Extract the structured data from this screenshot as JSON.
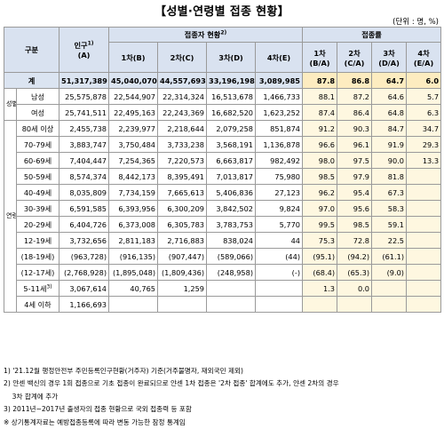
{
  "title": "【성별·연령별 접종 현황】",
  "unit": "(단위 : 명, %)",
  "headers": {
    "category": "구분",
    "population": "인구",
    "population_sup": "1)",
    "population_sub": "(A)",
    "vaccinated": "접종자 현황",
    "vaccinated_sup": "2)",
    "rate": "접종률",
    "dose1": "1차(B)",
    "dose2": "2차(C)",
    "dose3": "3차(D)",
    "dose4": "4차(E)",
    "r1a": "1차",
    "r1b": "(B/A)",
    "r2a": "2차",
    "r2b": "(C/A)",
    "r3a": "3차",
    "r3b": "(D/A)",
    "r4a": "4차",
    "r4b": "(E/A)"
  },
  "total": {
    "label": "계",
    "pop": "51,317,389",
    "d1": "45,040,070",
    "d2": "44,557,693",
    "d3": "33,196,198",
    "d4": "3,089,985",
    "r1": "87.8",
    "r2": "86.8",
    "r3": "64.7",
    "r4": "6.0"
  },
  "sex_group": "성별",
  "sex_rows": [
    {
      "label": "남성",
      "pop": "25,575,878",
      "d1": "22,544,907",
      "d2": "22,314,324",
      "d3": "16,513,678",
      "d4": "1,466,733",
      "r1": "88.1",
      "r2": "87.2",
      "r3": "64.6",
      "r4": "5.7"
    },
    {
      "label": "여성",
      "pop": "25,741,511",
      "d1": "22,495,163",
      "d2": "22,243,369",
      "d3": "16,682,520",
      "d4": "1,623,252",
      "r1": "87.4",
      "r2": "86.4",
      "r3": "64.8",
      "r4": "6.3"
    }
  ],
  "age_group": "연령별",
  "age_rows": [
    {
      "label": "80세 이상",
      "pop": "2,455,738",
      "d1": "2,239,977",
      "d2": "2,218,644",
      "d3": "2,079,258",
      "d4": "851,874",
      "r1": "91.2",
      "r2": "90.3",
      "r3": "84.7",
      "r4": "34.7"
    },
    {
      "label": "70-79세",
      "pop": "3,883,747",
      "d1": "3,750,484",
      "d2": "3,733,238",
      "d3": "3,568,191",
      "d4": "1,136,878",
      "r1": "96.6",
      "r2": "96.1",
      "r3": "91.9",
      "r4": "29.3"
    },
    {
      "label": "60-69세",
      "pop": "7,404,447",
      "d1": "7,254,365",
      "d2": "7,220,573",
      "d3": "6,663,817",
      "d4": "982,492",
      "r1": "98.0",
      "r2": "97.5",
      "r3": "90.0",
      "r4": "13.3"
    },
    {
      "label": "50-59세",
      "pop": "8,574,374",
      "d1": "8,442,173",
      "d2": "8,395,491",
      "d3": "7,013,817",
      "d4": "75,980",
      "r1": "98.5",
      "r2": "97.9",
      "r3": "81.8",
      "r4": ""
    },
    {
      "label": "40-49세",
      "pop": "8,035,809",
      "d1": "7,734,159",
      "d2": "7,665,613",
      "d3": "5,406,836",
      "d4": "27,123",
      "r1": "96.2",
      "r2": "95.4",
      "r3": "67.3",
      "r4": ""
    },
    {
      "label": "30-39세",
      "pop": "6,591,585",
      "d1": "6,393,956",
      "d2": "6,300,209",
      "d3": "3,842,502",
      "d4": "9,824",
      "r1": "97.0",
      "r2": "95.6",
      "r3": "58.3",
      "r4": ""
    },
    {
      "label": "20-29세",
      "pop": "6,404,726",
      "d1": "6,373,008",
      "d2": "6,305,783",
      "d3": "3,783,753",
      "d4": "5,770",
      "r1": "99.5",
      "r2": "98.5",
      "r3": "59.1",
      "r4": ""
    },
    {
      "label": "12-19세",
      "pop": "3,732,656",
      "d1": "2,811,183",
      "d2": "2,716,883",
      "d3": "838,024",
      "d4": "44",
      "r1": "75.3",
      "r2": "72.8",
      "r3": "22.5",
      "r4": ""
    }
  ],
  "sub_rows": [
    {
      "label": "(18-19세)",
      "pop": "(963,728)",
      "d1": "(916,135)",
      "d2": "(907,447)",
      "d3": "(589,066)",
      "d4": "(44)",
      "r1": "(95.1)",
      "r2": "(94.2)",
      "r3": "(61.1)",
      "r4": ""
    },
    {
      "label": "(12-17세)",
      "pop": "(2,768,928)",
      "d1": "(1,895,048)",
      "d2": "(1,809,436)",
      "d3": "(248,958)",
      "d4": "(-)",
      "r1": "(68.4)",
      "r2": "(65.3)",
      "r3": "(9.0)",
      "r4": ""
    }
  ],
  "child": {
    "label": "5-11세",
    "sup": "3)",
    "pop": "3,067,614",
    "d1": "40,765",
    "d2": "1,259",
    "d3": "",
    "d4": "",
    "r1": "1.3",
    "r2": "0.0",
    "r3": "",
    "r4": ""
  },
  "infant": {
    "label": "4세 이하",
    "pop": "1,166,693",
    "d1": "",
    "d2": "",
    "d3": "",
    "d4": "",
    "r1": "",
    "r2": "",
    "r3": "",
    "r4": ""
  },
  "notes": [
    "1) '21.12월 행정안전부 주민등록인구현황(거주자) 기준(거주불명자, 재외국민 제외)",
    "2) 얀센 백신의 경우 1회 접종으로 기초 접종이 완료되므로 얀센 1차 접종은 '2차 접종' 합계에도 추가, 얀센 2차의 경우",
    "    3차 합계에 추가",
    "3) 2011년~2017년 출생자의 접종 현황으로 국외 접종력 등 포함",
    "※ 상기통계자료는 예방접종등록에 따라 변동 가능한 잠정 통계임"
  ]
}
